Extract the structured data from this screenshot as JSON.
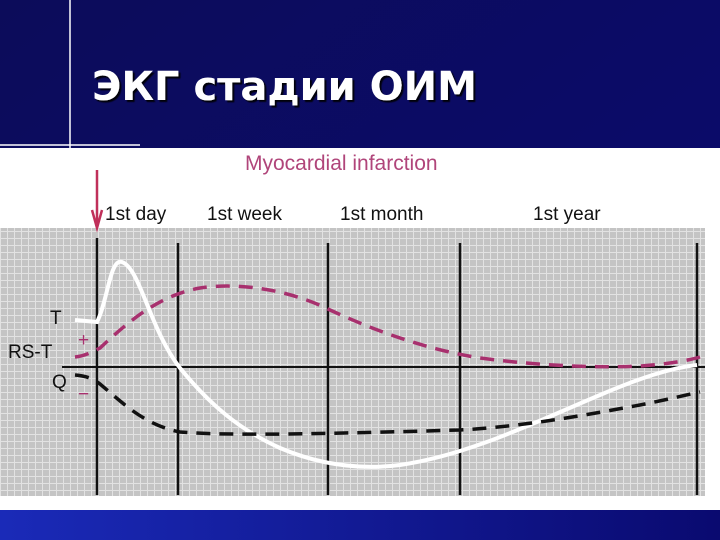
{
  "slide": {
    "title": "ЭКГ стадии ОИМ"
  },
  "diagram": {
    "title": "Myocardial infarction",
    "periods": [
      "1st day",
      "1st week",
      "1st month",
      "1st year"
    ],
    "labels": {
      "t": "T",
      "rs_t": "RS-T",
      "q": "Q",
      "plus": "+",
      "minus": "−"
    }
  }
}
